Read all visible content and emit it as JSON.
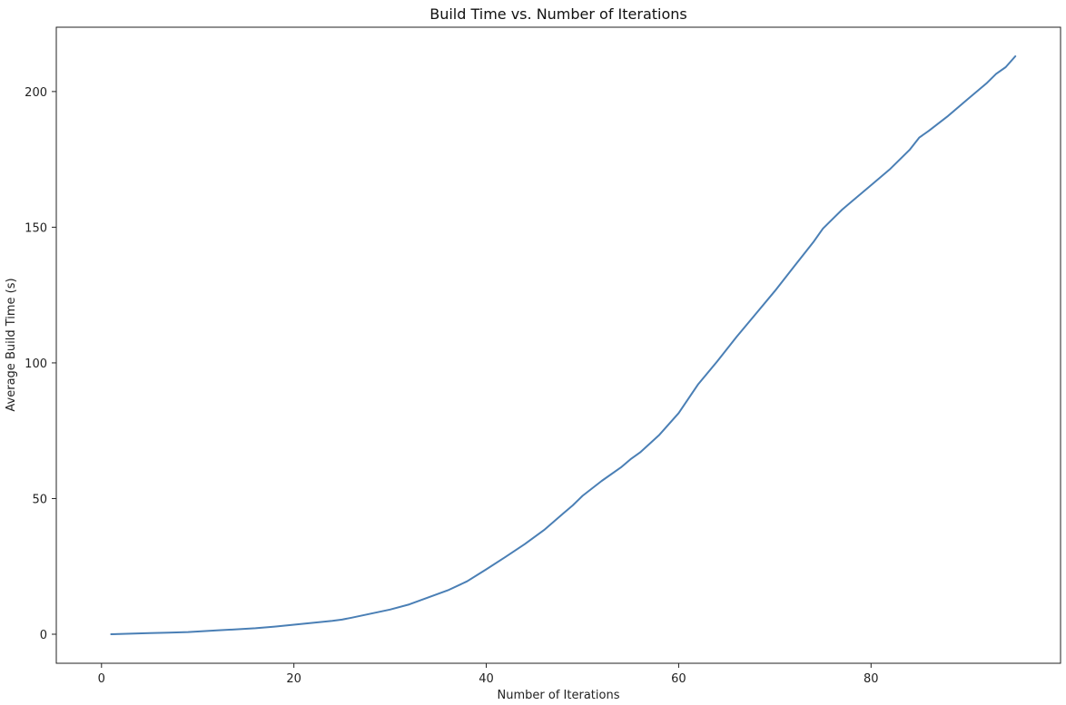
{
  "chart_data": {
    "type": "line",
    "title": "Build Time vs. Number of Iterations",
    "xlabel": "Number of Iterations",
    "ylabel": "Average Build Time (s)",
    "xlim": [
      -4.7,
      99.7
    ],
    "ylim": [
      -10.7,
      223.7
    ],
    "xticks": [
      0,
      20,
      40,
      60,
      80
    ],
    "yticks": [
      0,
      50,
      100,
      150,
      200
    ],
    "grid": false,
    "legend": "none",
    "series": [
      {
        "color": "#4a7fb5",
        "x": [
          1,
          3,
          5,
          7,
          9,
          10,
          12,
          14,
          16,
          18,
          20,
          22,
          24,
          25,
          26,
          28,
          30,
          32,
          34,
          36,
          38,
          40,
          42,
          44,
          46,
          48,
          49,
          50,
          52,
          54,
          55,
          56,
          58,
          60,
          62,
          64,
          66,
          68,
          70,
          72,
          74,
          75,
          76,
          77,
          78,
          80,
          82,
          84,
          85,
          86,
          88,
          90,
          92,
          93,
          94,
          95
        ],
        "y": [
          0,
          0.2,
          0.4,
          0.6,
          0.8,
          1.0,
          1.4,
          1.8,
          2.2,
          2.8,
          3.5,
          4.2,
          4.9,
          5.4,
          6.1,
          7.6,
          9.1,
          11.0,
          13.6,
          16.2,
          19.5,
          23.9,
          28.5,
          33.2,
          38.4,
          44.5,
          47.5,
          51.0,
          56.5,
          61.5,
          64.5,
          67.0,
          73.5,
          81.5,
          92.0,
          100.5,
          109.5,
          118.0,
          126.5,
          135.5,
          144.5,
          149.5,
          153.0,
          156.5,
          159.5,
          165.5,
          171.5,
          178.5,
          183.0,
          185.5,
          191.0,
          197.0,
          203.0,
          206.5,
          209.0,
          213.0
        ]
      }
    ]
  }
}
